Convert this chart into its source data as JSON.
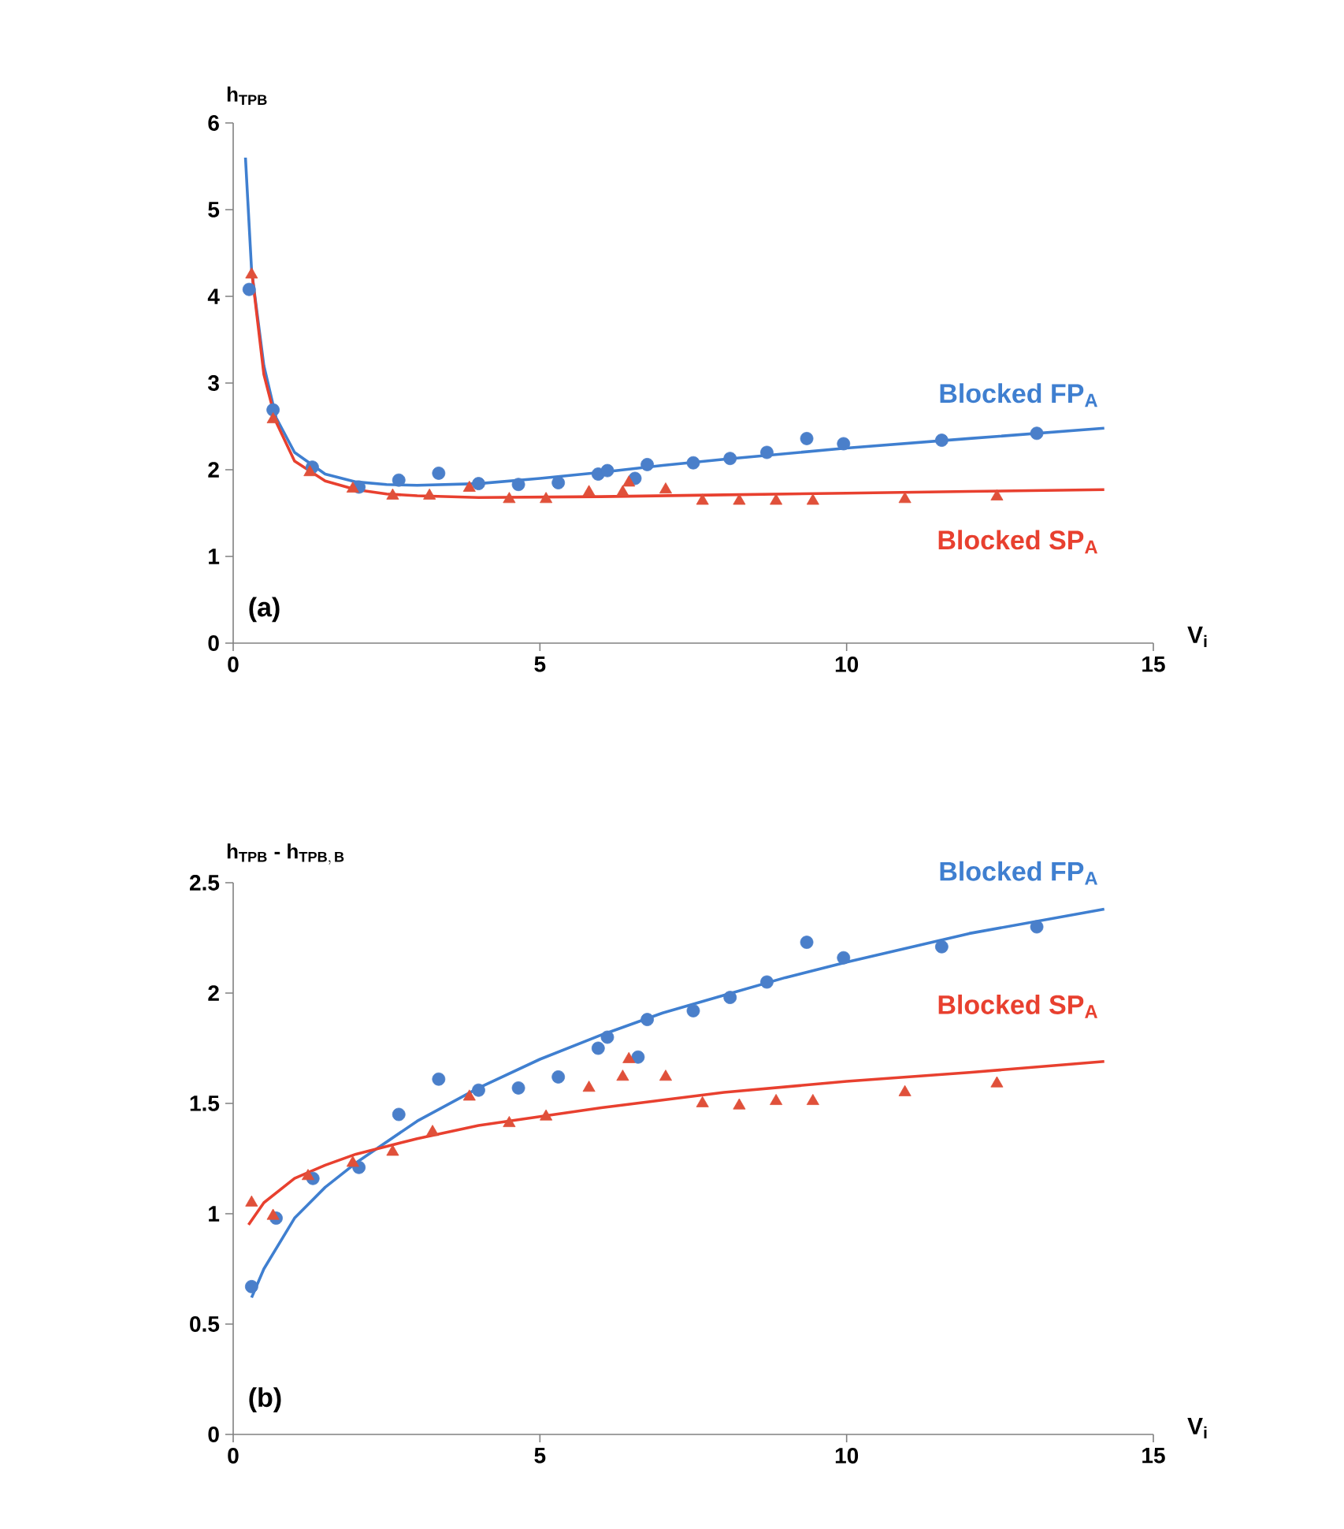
{
  "chart_data": [
    {
      "type": "scatter",
      "ylabel": "h$_{TPB}$",
      "xlabel": "V$_{i}$",
      "xlim": [
        0,
        15
      ],
      "ylim": [
        0,
        6
      ],
      "xticks": [
        0,
        5,
        10,
        15
      ],
      "yticks": [
        0,
        1,
        2,
        3,
        4,
        5,
        6
      ],
      "annotations": [
        "(a)"
      ],
      "series": [
        {
          "marker": "circle",
          "color": "#4a7fca",
          "x": [
            0.26,
            0.65,
            1.29,
            2.05,
            2.7,
            3.35,
            4.0,
            4.65,
            5.3,
            5.95,
            6.1,
            6.55,
            6.75,
            7.5,
            8.1,
            8.7,
            9.35,
            9.95,
            11.55,
            13.1
          ],
          "values": [
            4.08,
            2.69,
            2.03,
            1.8,
            1.88,
            1.96,
            1.84,
            1.83,
            1.85,
            1.95,
            1.99,
            1.9,
            2.06,
            2.08,
            2.13,
            2.2,
            2.36,
            2.3,
            2.34,
            2.42
          ]
        },
        {
          "marker": "triangle",
          "color": "#e0503a",
          "x": [
            0.3,
            0.65,
            1.25,
            1.95,
            2.6,
            3.2,
            3.85,
            4.5,
            5.1,
            5.8,
            6.35,
            6.45,
            7.05,
            7.65,
            8.25,
            8.85,
            9.45,
            10.95,
            12.45
          ],
          "values": [
            4.25,
            2.58,
            1.97,
            1.78,
            1.7,
            1.7,
            1.79,
            1.66,
            1.66,
            1.74,
            1.74,
            1.85,
            1.77,
            1.64,
            1.64,
            1.64,
            1.64,
            1.66,
            1.69
          ]
        },
        {
          "type": "line",
          "name": "Blocked FP$_{A}$",
          "color": "#3f7fd0",
          "x": [
            0.2,
            0.3,
            0.5,
            0.7,
            1.0,
            1.5,
            2,
            2.5,
            3,
            4,
            5,
            6,
            7,
            8,
            10,
            12,
            14.2
          ],
          "values": [
            5.6,
            4.3,
            3.2,
            2.6,
            2.2,
            1.95,
            1.86,
            1.83,
            1.82,
            1.84,
            1.9,
            1.97,
            2.05,
            2.12,
            2.25,
            2.36,
            2.48
          ]
        },
        {
          "type": "line",
          "name": "Blocked SP$_{A}$",
          "color": "#e8402f",
          "x": [
            0.3,
            0.5,
            0.7,
            1.0,
            1.5,
            2,
            2.5,
            3,
            4,
            6,
            8,
            10,
            12,
            14.2
          ],
          "values": [
            4.3,
            3.1,
            2.55,
            2.1,
            1.87,
            1.77,
            1.72,
            1.7,
            1.68,
            1.69,
            1.71,
            1.73,
            1.75,
            1.77
          ]
        }
      ]
    },
    {
      "type": "scatter",
      "ylabel": "\\mathbf{h_{TPB}\\textbf{ - }h_{TPB,\\,B}}",
      "xlabel": "V$_{i}$",
      "xlim": [
        0,
        15
      ],
      "ylim": [
        0,
        2.5
      ],
      "xticks": [
        0,
        5,
        10,
        15
      ],
      "yticks": [
        0,
        0.5,
        1,
        1.5,
        2,
        2.5
      ],
      "annotations": [
        "(b)"
      ],
      "series": [
        {
          "marker": "circle",
          "color": "#4a7fca",
          "x": [
            0.3,
            0.7,
            1.3,
            2.05,
            2.7,
            3.35,
            4.0,
            4.65,
            5.3,
            5.95,
            6.1,
            6.6,
            6.75,
            7.5,
            8.1,
            8.7,
            9.35,
            9.95,
            11.55,
            13.1
          ],
          "values": [
            0.67,
            0.98,
            1.16,
            1.21,
            1.45,
            1.61,
            1.56,
            1.57,
            1.62,
            1.75,
            1.8,
            1.71,
            1.88,
            1.92,
            1.98,
            2.05,
            2.23,
            2.16,
            2.21,
            2.3
          ]
        },
        {
          "marker": "triangle",
          "color": "#e0503a",
          "x": [
            0.3,
            0.65,
            1.22,
            1.95,
            2.6,
            3.25,
            3.85,
            4.5,
            5.1,
            5.8,
            6.35,
            6.45,
            7.05,
            7.65,
            8.25,
            8.85,
            9.45,
            10.95,
            12.45
          ],
          "values": [
            1.05,
            0.99,
            1.17,
            1.23,
            1.28,
            1.37,
            1.53,
            1.41,
            1.44,
            1.57,
            1.62,
            1.7,
            1.62,
            1.5,
            1.49,
            1.51,
            1.51,
            1.55,
            1.59
          ]
        },
        {
          "type": "line",
          "name": "Blocked FP$_{A}$",
          "color": "#3f7fd0",
          "x": [
            0.3,
            0.5,
            1,
            1.5,
            2,
            3,
            4,
            5,
            6,
            7,
            8,
            9,
            10,
            12,
            14.2
          ],
          "values": [
            0.62,
            0.75,
            0.98,
            1.12,
            1.23,
            1.42,
            1.57,
            1.7,
            1.81,
            1.91,
            1.99,
            2.07,
            2.14,
            2.27,
            2.38
          ]
        },
        {
          "type": "line",
          "name": "Blocked SP$_{A}$",
          "color": "#e8402f",
          "x": [
            0.25,
            0.5,
            1,
            1.5,
            2,
            3,
            4,
            5,
            6,
            8,
            10,
            12,
            14.2
          ],
          "values": [
            0.95,
            1.05,
            1.16,
            1.22,
            1.27,
            1.34,
            1.4,
            1.44,
            1.48,
            1.55,
            1.6,
            1.64,
            1.69
          ]
        }
      ]
    }
  ]
}
